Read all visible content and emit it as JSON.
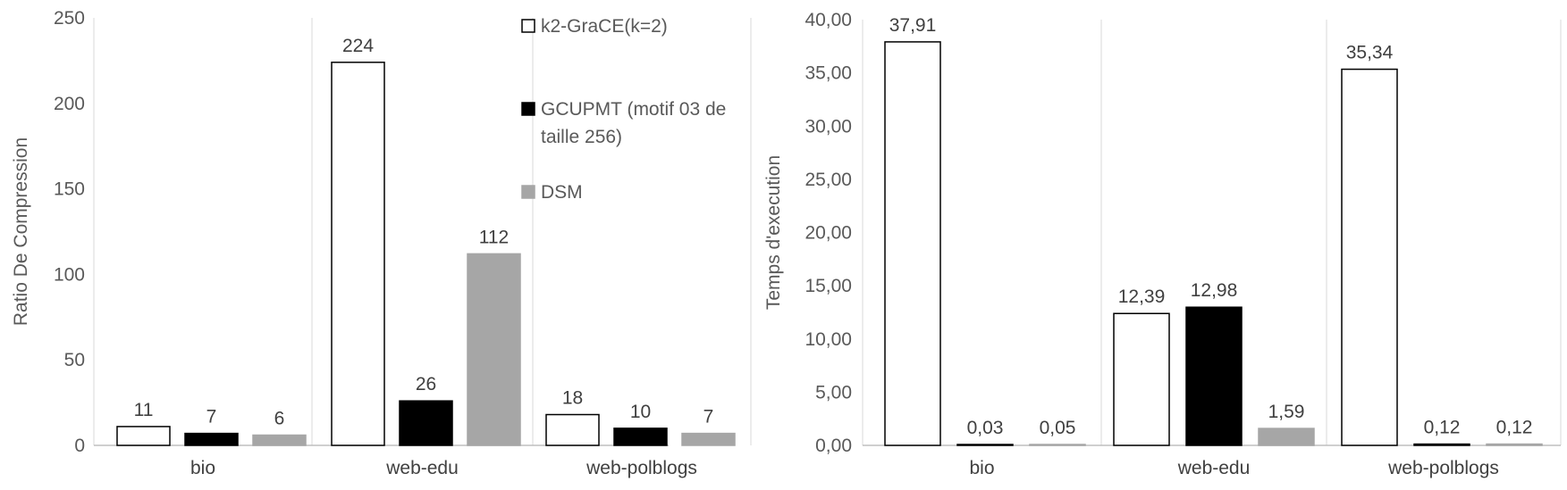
{
  "chart_data": [
    {
      "type": "bar",
      "categories": [
        "bio",
        "web-edu",
        "web-polblogs"
      ],
      "series": [
        {
          "name": "k2-GraCE(k=2)",
          "values": [
            11,
            224,
            18
          ],
          "labels": [
            "11",
            "224",
            "18"
          ],
          "color": "#ffffff",
          "stroke": "#000000"
        },
        {
          "name": "GCUPMT (motif 03 de taille 256)",
          "values": [
            7,
            26,
            10
          ],
          "labels": [
            "7",
            "26",
            "10"
          ],
          "color": "#000000",
          "stroke": "#000000"
        },
        {
          "name": "DSM",
          "values": [
            6,
            112,
            7
          ],
          "labels": [
            "6",
            "112",
            "7"
          ],
          "color": "#a6a6a6",
          "stroke": "#a6a6a6"
        }
      ],
      "ylabel": "Ratio De Compression",
      "xlabel": "",
      "ylim": [
        0,
        250
      ],
      "yticks": [
        "0",
        "50",
        "100",
        "150",
        "200",
        "250"
      ],
      "grid": "vertical category separators",
      "legend": {
        "placement": "top-right",
        "lines": [
          {
            "text": "k2-GraCE(k=2)",
            "swatch": 0
          },
          {
            "text": "GCUPMT (motif 03 de",
            "swatch": 1
          },
          {
            "text": "taille 256)",
            "swatch": null
          },
          {
            "text": "DSM",
            "swatch": 2
          }
        ]
      }
    },
    {
      "type": "bar",
      "categories": [
        "bio",
        "web-edu",
        "web-polblogs"
      ],
      "series": [
        {
          "name": "k2-GraCE(k=2)",
          "values": [
            37.91,
            12.39,
            35.34
          ],
          "labels": [
            "37,91",
            "12,39",
            "35,34"
          ],
          "color": "#ffffff",
          "stroke": "#000000"
        },
        {
          "name": "GCUPMT (motif 03 de taille 256)",
          "values": [
            0.03,
            12.98,
            0.12
          ],
          "labels": [
            "0,03",
            "12,98",
            "0,12"
          ],
          "color": "#000000",
          "stroke": "#000000"
        },
        {
          "name": "DSM",
          "values": [
            0.05,
            1.59,
            0.12
          ],
          "labels": [
            "0,05",
            "1,59",
            "0,12"
          ],
          "color": "#a6a6a6",
          "stroke": "#a6a6a6"
        }
      ],
      "ylabel": "Temps d'execution",
      "xlabel": "",
      "ylim": [
        0,
        40
      ],
      "yticks": [
        "0,00",
        "5,00",
        "10,00",
        "15,00",
        "20,00",
        "25,00",
        "30,00",
        "35,00",
        "40,00"
      ],
      "grid": "vertical category separators"
    }
  ]
}
